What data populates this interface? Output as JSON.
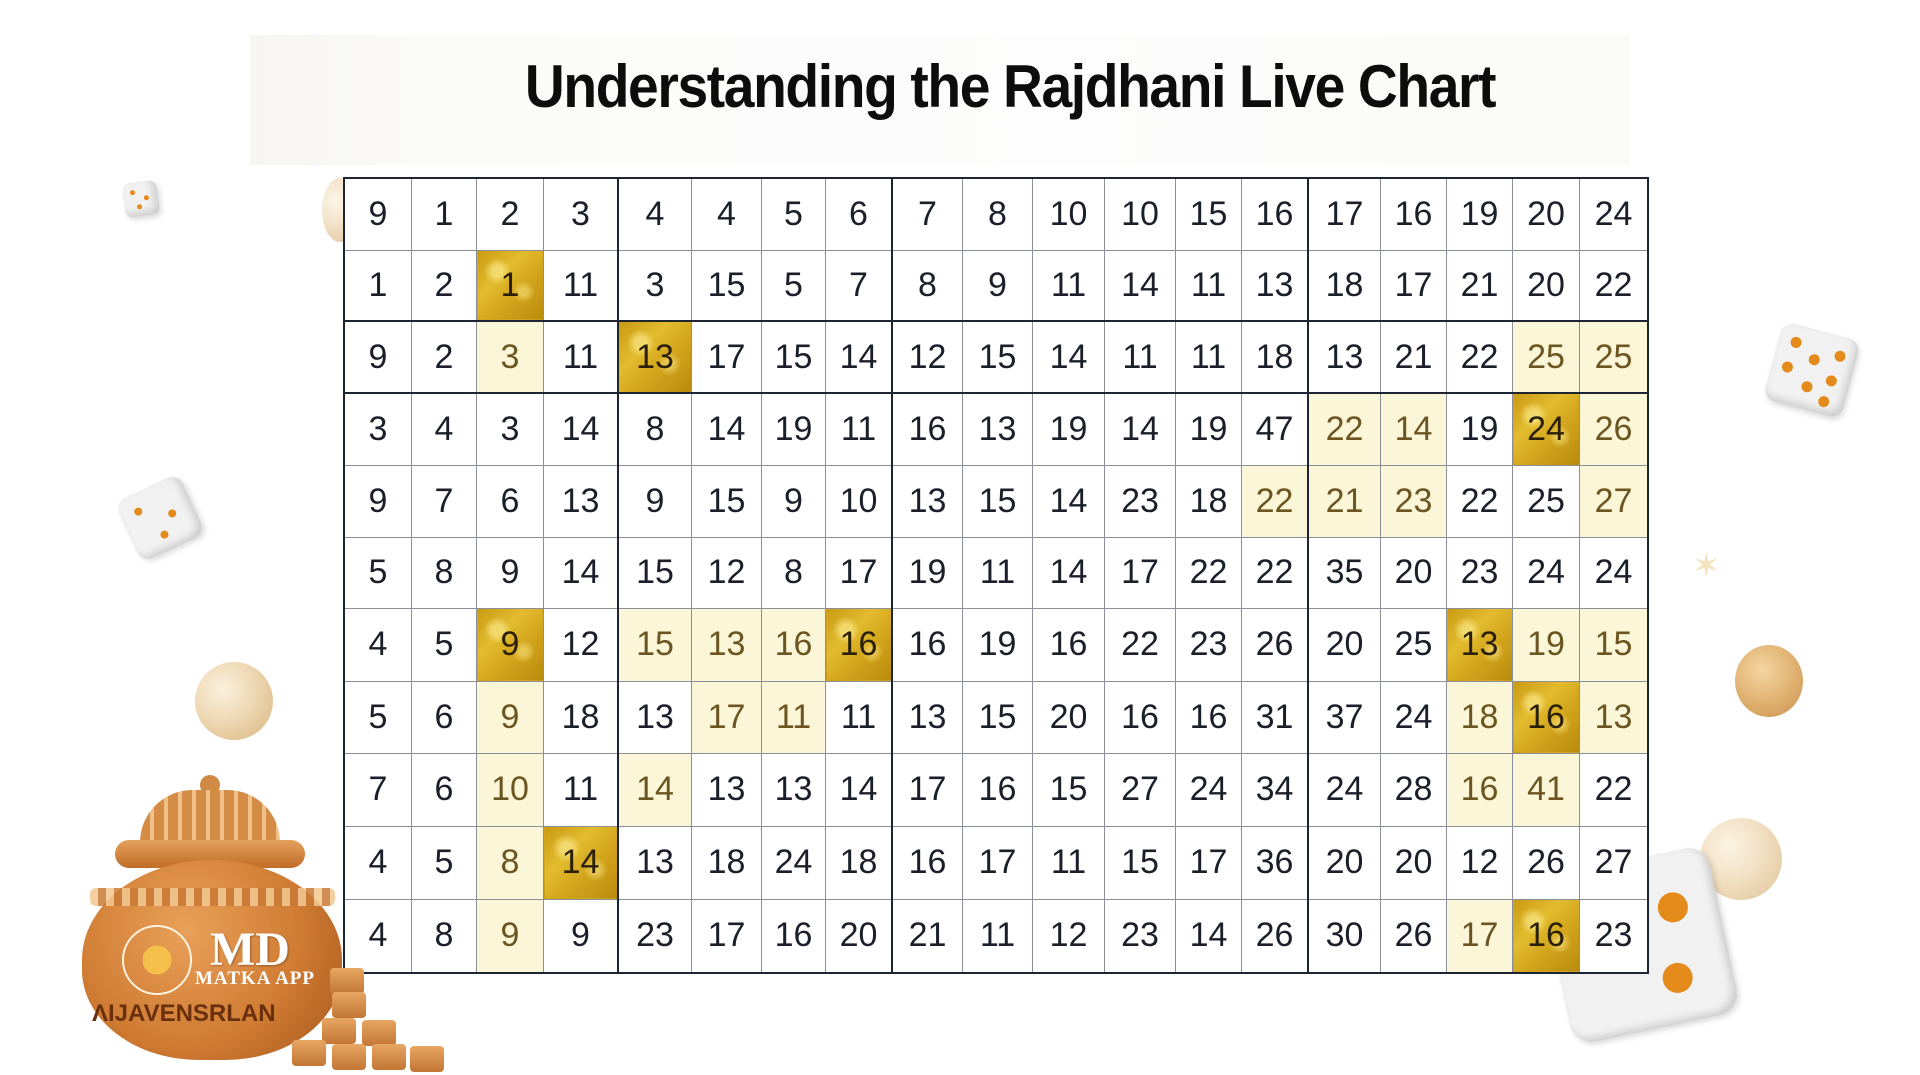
{
  "header": {
    "title": "Understanding the Rajdhani Live Chart"
  },
  "logo": {
    "brand": "MD",
    "subtitle": "MATKA APP",
    "pot_text": "ΛIJAVENSRLAN"
  },
  "colors": {
    "gold_highlight": "#d3a51c",
    "light_highlight": "#fcf6d8",
    "grid_border": "#1d2533",
    "text": "#1a1f29"
  },
  "chart_data": {
    "type": "table",
    "title": "Understanding the Rajdhani Live Chart",
    "rows": 11,
    "columns": 19,
    "column_groups": [
      4,
      4,
      6,
      5
    ],
    "row_groups": [
      2,
      1,
      8
    ],
    "values": [
      [
        9,
        1,
        2,
        3,
        4,
        4,
        5,
        6,
        7,
        8,
        10,
        10,
        15,
        16,
        17,
        16,
        19,
        20,
        24
      ],
      [
        1,
        2,
        1,
        11,
        3,
        15,
        5,
        7,
        8,
        9,
        11,
        14,
        11,
        13,
        18,
        17,
        21,
        20,
        22
      ],
      [
        9,
        2,
        3,
        11,
        13,
        17,
        15,
        14,
        12,
        15,
        14,
        11,
        11,
        18,
        13,
        21,
        22,
        25,
        25
      ],
      [
        3,
        4,
        3,
        14,
        8,
        14,
        19,
        11,
        16,
        13,
        19,
        14,
        19,
        47,
        22,
        14,
        19,
        24,
        26
      ],
      [
        9,
        7,
        6,
        13,
        9,
        15,
        9,
        10,
        13,
        15,
        14,
        23,
        18,
        22,
        21,
        23,
        22,
        25,
        27
      ],
      [
        5,
        8,
        9,
        14,
        15,
        12,
        8,
        17,
        19,
        11,
        14,
        17,
        22,
        22,
        35,
        20,
        23,
        24,
        24
      ],
      [
        4,
        5,
        9,
        12,
        15,
        13,
        16,
        16,
        16,
        19,
        16,
        22,
        23,
        26,
        20,
        25,
        13,
        19,
        15
      ],
      [
        5,
        6,
        9,
        18,
        13,
        17,
        11,
        11,
        13,
        15,
        20,
        16,
        16,
        31,
        37,
        24,
        18,
        16,
        13
      ],
      [
        7,
        6,
        10,
        11,
        14,
        13,
        13,
        14,
        17,
        16,
        15,
        27,
        24,
        34,
        24,
        28,
        16,
        41,
        22
      ],
      [
        4,
        5,
        8,
        14,
        13,
        18,
        24,
        18,
        16,
        17,
        11,
        15,
        17,
        36,
        20,
        20,
        12,
        26,
        27
      ],
      [
        4,
        8,
        9,
        9,
        23,
        17,
        16,
        20,
        21,
        11,
        12,
        23,
        14,
        26,
        30,
        26,
        17,
        16,
        23
      ]
    ],
    "highlights_gold": [
      [
        1,
        2
      ],
      [
        2,
        4
      ],
      [
        3,
        17
      ],
      [
        6,
        2
      ],
      [
        6,
        7
      ],
      [
        6,
        16
      ],
      [
        7,
        17
      ],
      [
        9,
        3
      ],
      [
        10,
        17
      ]
    ],
    "highlights_light": [
      [
        2,
        2
      ],
      [
        2,
        17
      ],
      [
        2,
        18
      ],
      [
        3,
        14
      ],
      [
        3,
        15
      ],
      [
        3,
        18
      ],
      [
        4,
        13
      ],
      [
        4,
        14
      ],
      [
        4,
        15
      ],
      [
        4,
        18
      ],
      [
        6,
        4
      ],
      [
        6,
        5
      ],
      [
        6,
        6
      ],
      [
        6,
        17
      ],
      [
        6,
        18
      ],
      [
        7,
        2
      ],
      [
        7,
        5
      ],
      [
        7,
        6
      ],
      [
        7,
        16
      ],
      [
        7,
        18
      ],
      [
        8,
        2
      ],
      [
        8,
        4
      ],
      [
        8,
        16
      ],
      [
        8,
        17
      ],
      [
        9,
        2
      ],
      [
        10,
        2
      ],
      [
        10,
        16
      ]
    ],
    "legend": [],
    "xlabel": "",
    "ylabel": ""
  }
}
